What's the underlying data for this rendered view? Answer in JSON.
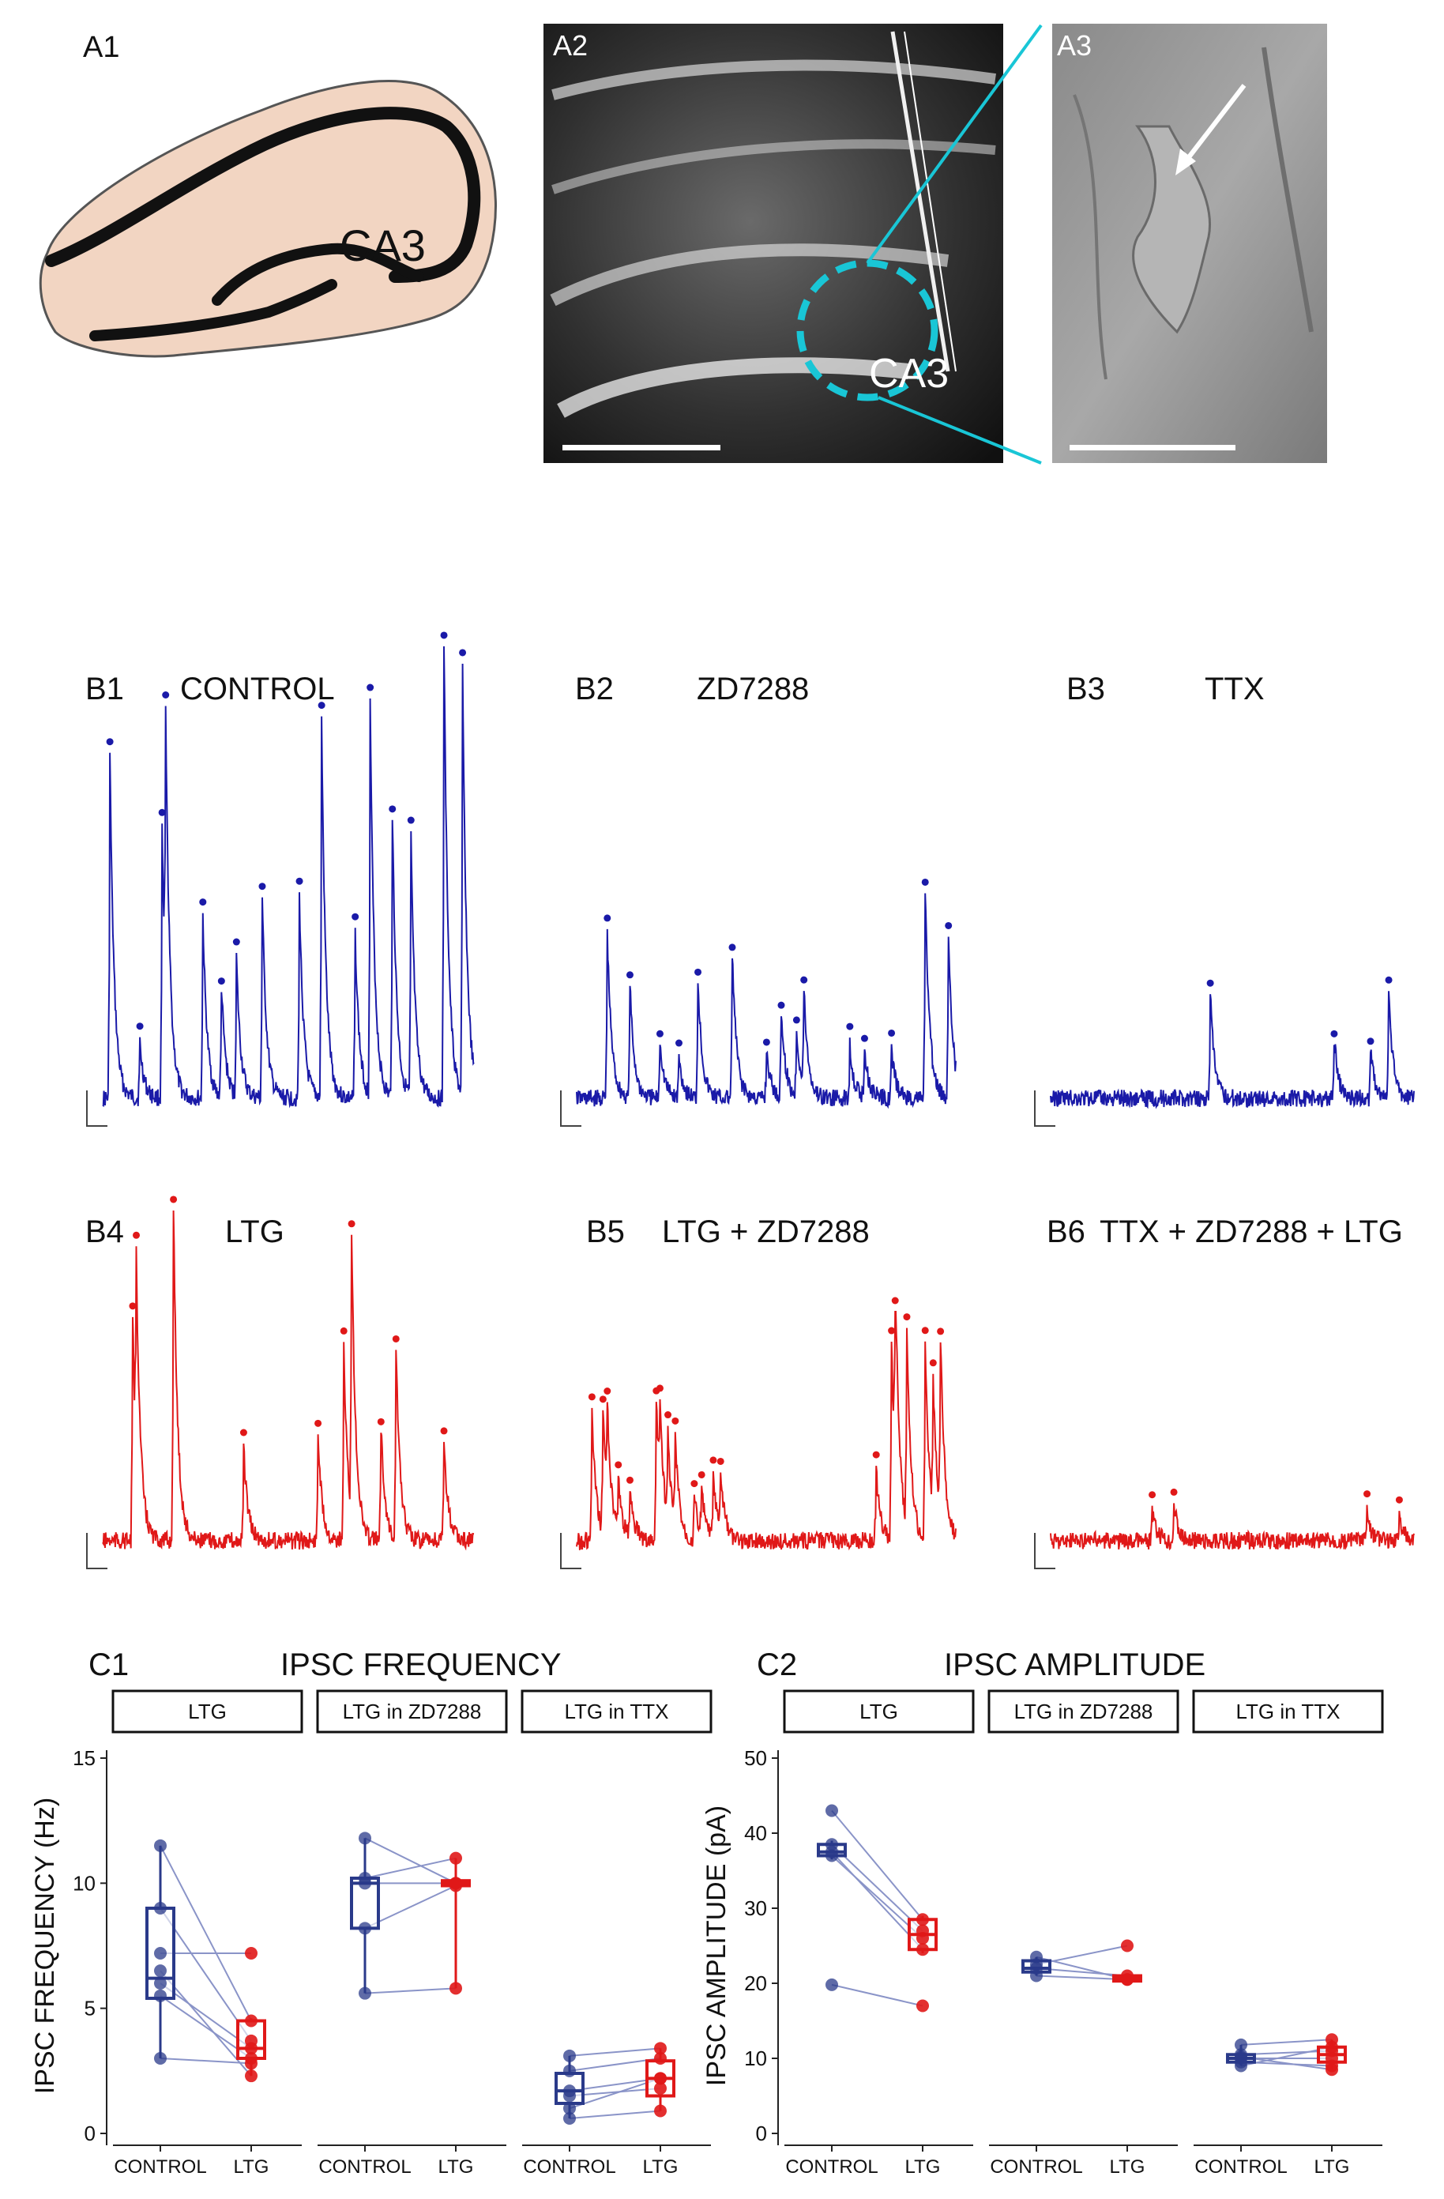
{
  "panels": {
    "a1": {
      "label": "A1",
      "region": "CA3"
    },
    "a2": {
      "label": "A2",
      "region": "CA3"
    },
    "a3": {
      "label": "A3"
    },
    "b1": {
      "label": "B1",
      "condition": "CONTROL"
    },
    "b2": {
      "label": "B2",
      "condition": "ZD7288"
    },
    "b3": {
      "label": "B3",
      "condition": "TTX"
    },
    "b4": {
      "label": "B4",
      "condition": "LTG"
    },
    "b5": {
      "label": "B5",
      "condition": "LTG + ZD7288"
    },
    "b6": {
      "label": "B6",
      "condition": "TTX + ZD7288 + LTG"
    },
    "c1": {
      "label": "C1"
    },
    "c2": {
      "label": "C2"
    }
  },
  "colors": {
    "control": "#1a1aa8",
    "ltg": "#e01818",
    "control_box": "#2a3a8a",
    "ltg_box": "#e01818",
    "tissue": "#f2d5c2",
    "cyan": "#19c6d6"
  },
  "traces": {
    "b1": {
      "color": "control",
      "peaks": [
        [
          0.02,
          0.75
        ],
        [
          0.1,
          0.12
        ],
        [
          0.16,
          0.58
        ],
        [
          0.17,
          0.6
        ],
        [
          0.27,
          0.4
        ],
        [
          0.32,
          0.24
        ],
        [
          0.36,
          0.3
        ],
        [
          0.43,
          0.44
        ],
        [
          0.53,
          0.44
        ],
        [
          0.59,
          0.82
        ],
        [
          0.68,
          0.36
        ],
        [
          0.72,
          0.85
        ],
        [
          0.78,
          0.62
        ],
        [
          0.83,
          0.56
        ],
        [
          0.92,
          1.0
        ],
        [
          0.97,
          0.92
        ]
      ]
    },
    "b2": {
      "color": "control",
      "peaks": [
        [
          0.08,
          0.62
        ],
        [
          0.14,
          0.42
        ],
        [
          0.22,
          0.22
        ],
        [
          0.27,
          0.15
        ],
        [
          0.32,
          0.45
        ],
        [
          0.41,
          0.55
        ],
        [
          0.5,
          0.18
        ],
        [
          0.54,
          0.33
        ],
        [
          0.58,
          0.25
        ],
        [
          0.6,
          0.36
        ],
        [
          0.72,
          0.2
        ],
        [
          0.76,
          0.18
        ],
        [
          0.83,
          0.18
        ],
        [
          0.92,
          0.78
        ],
        [
          0.98,
          0.62
        ]
      ]
    },
    "b3": {
      "color": "control",
      "peaks": [
        [
          0.44,
          0.95
        ],
        [
          0.78,
          0.55
        ],
        [
          0.88,
          0.45
        ],
        [
          0.93,
          0.98
        ]
      ]
    },
    "b4": {
      "color": "ltg",
      "peaks": [
        [
          0.08,
          0.68
        ],
        [
          0.09,
          0.58
        ],
        [
          0.19,
          1.0
        ],
        [
          0.38,
          0.28
        ],
        [
          0.58,
          0.33
        ],
        [
          0.65,
          0.58
        ],
        [
          0.67,
          0.84
        ],
        [
          0.75,
          0.35
        ],
        [
          0.79,
          0.58
        ],
        [
          0.92,
          0.3
        ]
      ]
    },
    "b5": {
      "color": "ltg",
      "peaks": [
        [
          0.04,
          0.62
        ],
        [
          0.07,
          0.62
        ],
        [
          0.08,
          0.45
        ],
        [
          0.11,
          0.25
        ],
        [
          0.14,
          0.25
        ],
        [
          0.21,
          0.7
        ],
        [
          0.22,
          0.42
        ],
        [
          0.24,
          0.42
        ],
        [
          0.26,
          0.42
        ],
        [
          0.31,
          0.22
        ],
        [
          0.33,
          0.22
        ],
        [
          0.36,
          0.3
        ],
        [
          0.38,
          0.28
        ],
        [
          0.79,
          0.35
        ],
        [
          0.83,
          0.95
        ],
        [
          0.84,
          0.95
        ],
        [
          0.87,
          0.95
        ],
        [
          0.92,
          0.95
        ],
        [
          0.94,
          0.65
        ],
        [
          0.96,
          0.85
        ]
      ]
    },
    "b6": {
      "color": "ltg",
      "peaks": [
        [
          0.28,
          0.4
        ],
        [
          0.34,
          0.55
        ],
        [
          0.87,
          0.4
        ],
        [
          0.96,
          0.4
        ]
      ]
    }
  },
  "chart_data": [
    {
      "type": "box",
      "title": "IPSC FREQUENCY",
      "ylabel": "IPSC FREQUENCY (Hz)",
      "ylim": [
        0,
        15
      ],
      "yticks": [
        0,
        5,
        10,
        15
      ],
      "facets": [
        "LTG",
        "LTG in ZD7288",
        "LTG in TTX"
      ],
      "categories": [
        "CONTROL",
        "LTG"
      ],
      "groups": [
        {
          "facet": "LTG",
          "boxes": [
            {
              "q1": 5.4,
              "median": 6.2,
              "q3": 9.0,
              "min": 3.0,
              "max": 11.5
            },
            {
              "q1": 3.0,
              "median": 3.4,
              "q3": 4.5,
              "min": 2.3,
              "max": 4.6
            }
          ],
          "pairs": [
            [
              11.5,
              4.5
            ],
            [
              9.0,
              3.7
            ],
            [
              6.5,
              2.3
            ],
            [
              6.0,
              3.4
            ],
            [
              5.5,
              3.0
            ],
            [
              3.0,
              2.8
            ],
            [
              7.2,
              7.2
            ]
          ]
        },
        {
          "facet": "LTG in ZD7288",
          "boxes": [
            {
              "q1": 8.2,
              "median": 10.0,
              "q3": 10.2,
              "min": 5.6,
              "max": 11.8
            },
            {
              "q1": 9.9,
              "median": 10.0,
              "q3": 10.1,
              "min": 5.8,
              "max": 11.0
            }
          ],
          "pairs": [
            [
              11.8,
              10.0
            ],
            [
              10.2,
              11.0
            ],
            [
              10.0,
              10.0
            ],
            [
              8.2,
              9.9
            ],
            [
              5.6,
              5.8
            ]
          ]
        },
        {
          "facet": "LTG in TTX",
          "boxes": [
            {
              "q1": 1.2,
              "median": 1.7,
              "q3": 2.4,
              "min": 0.6,
              "max": 3.1
            },
            {
              "q1": 1.5,
              "median": 2.2,
              "q3": 2.9,
              "min": 0.9,
              "max": 3.4
            }
          ],
          "pairs": [
            [
              3.1,
              3.4
            ],
            [
              2.5,
              3.0
            ],
            [
              1.7,
              2.2
            ],
            [
              1.5,
              1.8
            ],
            [
              1.0,
              2.2
            ],
            [
              0.6,
              0.9
            ]
          ]
        }
      ]
    },
    {
      "type": "box",
      "title": "IPSC AMPLITUDE",
      "ylabel": "IPSC AMPLITUDE  (pA)",
      "ylim": [
        0,
        50
      ],
      "yticks": [
        0,
        10,
        20,
        30,
        40,
        50
      ],
      "facets": [
        "LTG",
        "LTG in ZD7288",
        "LTG in TTX"
      ],
      "categories": [
        "CONTROL",
        "LTG"
      ],
      "groups": [
        {
          "facet": "LTG",
          "boxes": [
            {
              "q1": 37.0,
              "median": 37.5,
              "q3": 38.5,
              "min": 36.5,
              "max": 39.0
            },
            {
              "q1": 24.5,
              "median": 26.5,
              "q3": 28.5,
              "min": 24.0,
              "max": 29.0
            }
          ],
          "pairs": [
            [
              43.0,
              28.5
            ],
            [
              38.5,
              27.0
            ],
            [
              37.5,
              24.5
            ],
            [
              37.0,
              26.0
            ],
            [
              19.8,
              17.0
            ]
          ]
        },
        {
          "facet": "LTG in ZD7288",
          "boxes": [
            {
              "q1": 21.5,
              "median": 22.0,
              "q3": 23.0,
              "min": 21.0,
              "max": 23.5
            },
            {
              "q1": 20.3,
              "median": 20.6,
              "q3": 21.0,
              "min": 20.0,
              "max": 21.2
            }
          ],
          "pairs": [
            [
              23.5,
              20.5
            ],
            [
              22.5,
              25.0
            ],
            [
              22.0,
              21.0
            ],
            [
              21.0,
              20.5
            ]
          ]
        },
        {
          "facet": "LTG in TTX",
          "boxes": [
            {
              "q1": 9.5,
              "median": 10.0,
              "q3": 10.5,
              "min": 9.0,
              "max": 11.8
            },
            {
              "q1": 9.5,
              "median": 10.5,
              "q3": 11.5,
              "min": 8.5,
              "max": 12.5
            }
          ],
          "pairs": [
            [
              11.8,
              12.5
            ],
            [
              10.5,
              11.0
            ],
            [
              10.0,
              10.0
            ],
            [
              9.5,
              9.0
            ],
            [
              9.0,
              11.5
            ],
            [
              10.2,
              8.5
            ]
          ]
        }
      ]
    }
  ]
}
